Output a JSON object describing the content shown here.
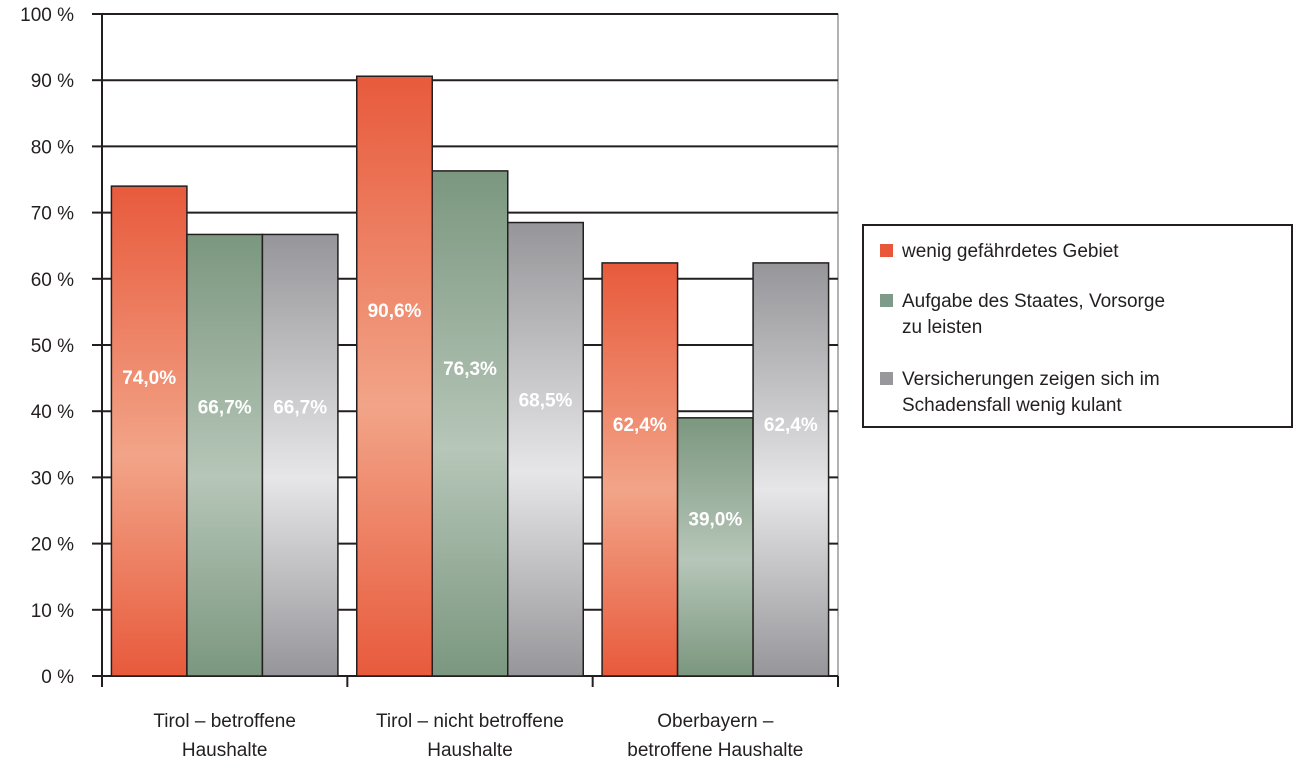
{
  "chart_data": {
    "type": "bar",
    "categories": [
      [
        "Tirol – betroffene",
        "Haushalte"
      ],
      [
        "Tirol – nicht betroffene",
        "Haushalte"
      ],
      [
        "Oberbayern –",
        "betroffene Haushalte"
      ]
    ],
    "series": [
      {
        "name": "wenig gefährdetes Gebiet",
        "color": "#e8573a",
        "values": [
          74.0,
          90.6,
          62.4
        ],
        "labels": [
          "74,0%",
          "90,6%",
          "62,4%"
        ]
      },
      {
        "name": "Aufgabe des Staates, Vorsorge zu leisten",
        "color": "#7e9a88",
        "values": [
          66.7,
          76.3,
          39.0
        ],
        "labels": [
          "66,7%",
          "76,3%",
          "39,0%"
        ]
      },
      {
        "name": "Versicherungen zeigen sich im Schadensfall wenig kulant",
        "color": "#98989c",
        "values": [
          66.7,
          68.5,
          62.4
        ],
        "labels": [
          "66,7%",
          "68,5%",
          "62,4%"
        ]
      }
    ],
    "ylim": [
      0,
      100
    ],
    "yticks": [
      0,
      10,
      20,
      30,
      40,
      50,
      60,
      70,
      80,
      90,
      100
    ],
    "ytick_labels": [
      "0 %",
      "10 %",
      "20 %",
      "30 %",
      "40 %",
      "50 %",
      "60 %",
      "70 %",
      "80 %",
      "90 %",
      "100 %"
    ],
    "grid": true,
    "legend_position": "right",
    "legend": [
      [
        "wenig gefährdetes Gebiet"
      ],
      [
        "Aufgabe des Staates, Vorsorge",
        "zu leisten"
      ],
      [
        "Versicherungen zeigen sich im",
        "Schadensfall wenig kulant"
      ]
    ]
  }
}
